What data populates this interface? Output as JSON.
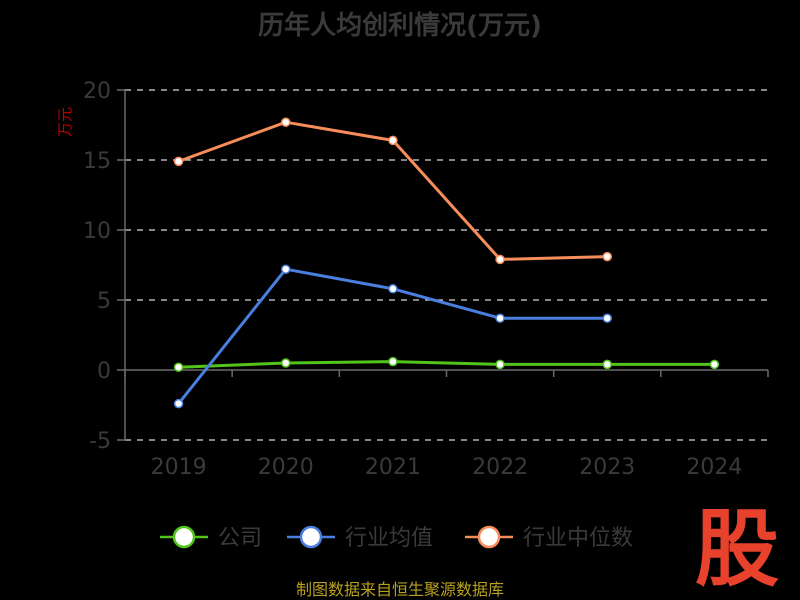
{
  "chart_data": {
    "type": "line",
    "title": "历年人均创利情况(万元)",
    "ylabel": "万元",
    "xlabel": "",
    "ylim": [
      -5,
      20
    ],
    "yticks": [
      "-5",
      "0",
      "5",
      "10",
      "15",
      "20"
    ],
    "categories": [
      "2019",
      "2020",
      "2021",
      "2022",
      "2023",
      "2024"
    ],
    "grid": true,
    "legend": "bottom",
    "series": [
      {
        "name": "公司",
        "color": "#52c41a",
        "values": [
          0.2,
          0.5,
          0.6,
          0.4,
          0.4,
          0.4
        ]
      },
      {
        "name": "行业均值",
        "color": "#4a7fe0",
        "values": [
          -2.4,
          7.2,
          5.8,
          3.7,
          3.7,
          null
        ]
      },
      {
        "name": "行业中位数",
        "color": "#f68d5a",
        "values": [
          14.9,
          17.7,
          16.4,
          7.9,
          8.1,
          null
        ]
      }
    ]
  },
  "source": "制图数据来自恒生聚源数据库",
  "logo": {
    "text": "股",
    "color": "#e8422d"
  }
}
